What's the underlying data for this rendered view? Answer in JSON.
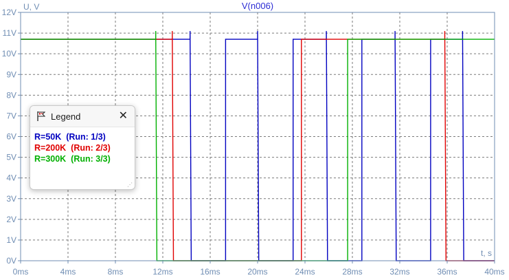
{
  "chart_data": {
    "type": "line",
    "title": "V(n006)",
    "ylabel": "U, V",
    "xlabel": "t, s",
    "xlim": [
      0,
      40
    ],
    "ylim": [
      0,
      12
    ],
    "x_ticks": [
      "0ms",
      "4ms",
      "8ms",
      "12ms",
      "16ms",
      "20ms",
      "24ms",
      "28ms",
      "32ms",
      "36ms",
      "40ms"
    ],
    "y_ticks": [
      "0V",
      "1V",
      "2V",
      "3V",
      "4V",
      "5V",
      "6V",
      "7V",
      "8V",
      "9V",
      "10V",
      "11V",
      "12V"
    ],
    "grid": true,
    "x_unit": "ms",
    "y_unit": "V",
    "series": [
      {
        "name": "R=50K  (Run: 1/3)",
        "color": "#0000c0",
        "points": [
          [
            0,
            10.7
          ],
          [
            11.7,
            10.7
          ],
          [
            11.7,
            10.7
          ],
          [
            14.3,
            10.7
          ],
          [
            14.3,
            11.1
          ],
          [
            14.4,
            0
          ],
          [
            17.3,
            0
          ],
          [
            17.3,
            10.7
          ],
          [
            20.0,
            10.7
          ],
          [
            20.0,
            11.1
          ],
          [
            20.1,
            0
          ],
          [
            23.0,
            0
          ],
          [
            23.0,
            10.7
          ],
          [
            25.8,
            10.7
          ],
          [
            25.8,
            11.1
          ],
          [
            25.9,
            0
          ],
          [
            28.8,
            0
          ],
          [
            28.8,
            10.7
          ],
          [
            31.6,
            10.7
          ],
          [
            31.6,
            11.1
          ],
          [
            31.7,
            0
          ],
          [
            34.6,
            0
          ],
          [
            34.6,
            10.7
          ],
          [
            37.3,
            10.7
          ],
          [
            37.3,
            11.1
          ],
          [
            37.4,
            0
          ],
          [
            40,
            0
          ]
        ]
      },
      {
        "name": "R=200K  (Run: 2/3)",
        "color": "#e00000",
        "points": [
          [
            0,
            10.7
          ],
          [
            11.7,
            10.7
          ],
          [
            12.8,
            10.7
          ],
          [
            12.8,
            11.1
          ],
          [
            12.9,
            0
          ],
          [
            23.7,
            0
          ],
          [
            23.7,
            10.7
          ],
          [
            35.8,
            10.7
          ],
          [
            35.8,
            11.1
          ],
          [
            35.9,
            0
          ],
          [
            40,
            0
          ]
        ]
      },
      {
        "name": "R=300K  (Run: 3/3)",
        "color": "#00b000",
        "points": [
          [
            0,
            10.7
          ],
          [
            11.4,
            10.7
          ],
          [
            11.4,
            11.1
          ],
          [
            11.5,
            0
          ],
          [
            27.6,
            0
          ],
          [
            27.6,
            10.7
          ],
          [
            40,
            10.7
          ]
        ]
      }
    ]
  },
  "legend": {
    "title": "Legend",
    "close_icon": "close-icon",
    "flag_icon": "ltspice-flag-icon",
    "entries": [
      {
        "text": "R=50K  (Run: 1/3)",
        "color": "#0000c0"
      },
      {
        "text": "R=200K  (Run: 2/3)",
        "color": "#e00000"
      },
      {
        "text": "R=300K  (Run: 3/3)",
        "color": "#00b000"
      }
    ]
  },
  "colors": {
    "axis": "#6f8db3",
    "grid": "#7a7a7a",
    "title": "#2b2bd4",
    "background": "#ffffff"
  }
}
